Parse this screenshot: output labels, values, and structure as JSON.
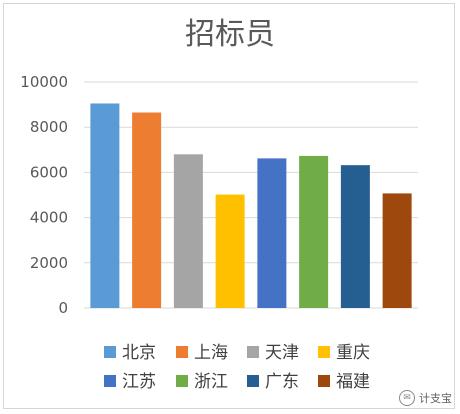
{
  "chart_data": {
    "type": "bar",
    "title": "招标员",
    "categories": [
      "北京",
      "上海",
      "天津",
      "重庆",
      "江苏",
      "浙江",
      "广东",
      "福建"
    ],
    "values": [
      9050,
      8650,
      6800,
      5020,
      6620,
      6730,
      6320,
      5070
    ],
    "colors": [
      "#5b9bd5",
      "#ed7d31",
      "#a5a5a5",
      "#ffc000",
      "#4472c4",
      "#70ad47",
      "#255e91",
      "#9e480e"
    ],
    "xlabel": "",
    "ylabel": "",
    "ylim": [
      0,
      10000
    ],
    "yticks": [
      0,
      2000,
      4000,
      6000,
      8000,
      10000
    ],
    "grid": true,
    "legend": "bottom"
  },
  "watermark": {
    "text": "计支宝"
  }
}
